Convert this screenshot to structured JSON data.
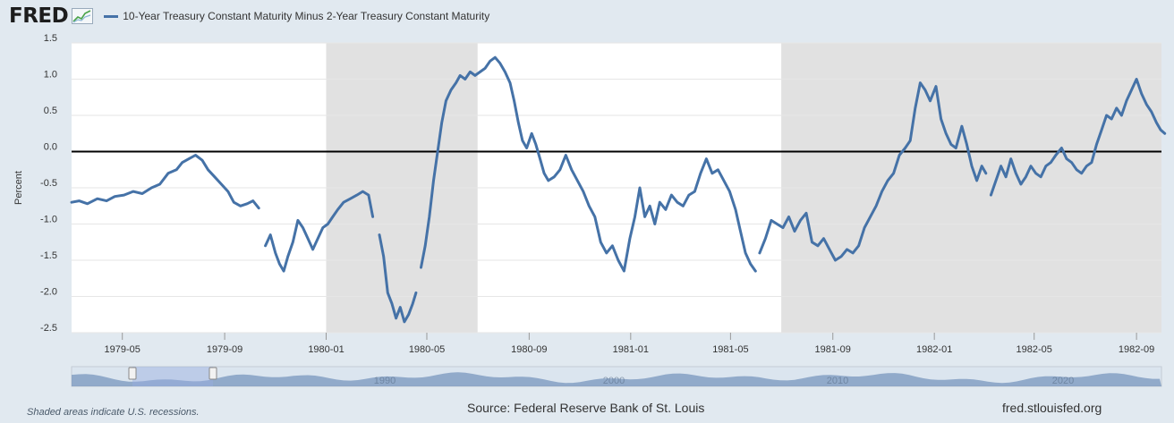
{
  "header": {
    "logo_text": "FRED",
    "logo_icon": "chart-line-icon",
    "legend_label": "10-Year Treasury Constant Maturity Minus 2-Year Treasury Constant Maturity",
    "series_color": "#4572a7"
  },
  "footer": {
    "note": "Shaded areas indicate U.S. recessions.",
    "source": "Source: Federal Reserve Bank of St. Louis",
    "url": "fred.stlouisfed.org"
  },
  "chart_data": {
    "type": "line",
    "title": "",
    "ylabel": "Percent",
    "xlabel": "",
    "ylim": [
      -2.5,
      1.5
    ],
    "yticks": [
      1.5,
      1.0,
      0.5,
      0.0,
      -0.5,
      -1.0,
      -1.5,
      -2.0,
      -2.5
    ],
    "ytick_labels": [
      "1.5",
      "1.0",
      "0.5",
      "0.0",
      "-0.5",
      "-1.0",
      "-1.5",
      "-2.0",
      "-2.5"
    ],
    "x_start": "1979-03",
    "x_end": "1982-10",
    "xticks": [
      {
        "month": "1979-05",
        "label": "1979-05"
      },
      {
        "month": "1979-09",
        "label": "1979-09"
      },
      {
        "month": "1980-01",
        "label": "1980-01"
      },
      {
        "month": "1980-05",
        "label": "1980-05"
      },
      {
        "month": "1980-09",
        "label": "1980-09"
      },
      {
        "month": "1981-01",
        "label": "1981-01"
      },
      {
        "month": "1981-05",
        "label": "1981-05"
      },
      {
        "month": "1981-09",
        "label": "1981-09"
      },
      {
        "month": "1982-01",
        "label": "1982-01"
      },
      {
        "month": "1982-05",
        "label": "1982-05"
      },
      {
        "month": "1982-09",
        "label": "1982-09"
      }
    ],
    "recessions": [
      [
        "1980-01",
        "1980-07"
      ],
      [
        "1981-07",
        "1982-10"
      ]
    ],
    "reference_line": 0,
    "grid": true,
    "legend_position": "top",
    "series": [
      {
        "color": "#4572a7",
        "segments": [
          [
            [
              "1979-03-01",
              -0.7
            ],
            [
              "1979-03-10",
              -0.68
            ],
            [
              "1979-03-20",
              -0.72
            ],
            [
              "1979-04-01",
              -0.65
            ],
            [
              "1979-04-12",
              -0.68
            ],
            [
              "1979-04-22",
              -0.62
            ],
            [
              "1979-05-03",
              -0.6
            ],
            [
              "1979-05-14",
              -0.55
            ],
            [
              "1979-05-25",
              -0.58
            ],
            [
              "1979-06-05",
              -0.5
            ],
            [
              "1979-06-15",
              -0.45
            ],
            [
              "1979-06-25",
              -0.3
            ],
            [
              "1979-07-05",
              -0.25
            ],
            [
              "1979-07-12",
              -0.15
            ],
            [
              "1979-07-20",
              -0.1
            ],
            [
              "1979-07-28",
              -0.05
            ],
            [
              "1979-08-05",
              -0.12
            ],
            [
              "1979-08-12",
              -0.25
            ],
            [
              "1979-08-20",
              -0.35
            ],
            [
              "1979-08-28",
              -0.45
            ],
            [
              "1979-09-05",
              -0.55
            ],
            [
              "1979-09-12",
              -0.7
            ],
            [
              "1979-09-20",
              -0.75
            ],
            [
              "1979-09-28",
              -0.72
            ],
            [
              "1979-10-05",
              -0.68
            ],
            [
              "1979-10-12",
              -0.78
            ]
          ],
          [
            [
              "1979-10-20",
              -1.3
            ],
            [
              "1979-10-26",
              -1.15
            ],
            [
              "1979-11-01",
              -1.4
            ],
            [
              "1979-11-06",
              -1.55
            ],
            [
              "1979-11-11",
              -1.65
            ],
            [
              "1979-11-16",
              -1.45
            ],
            [
              "1979-11-22",
              -1.25
            ],
            [
              "1979-11-28",
              -0.95
            ],
            [
              "1979-12-04",
              -1.05
            ],
            [
              "1979-12-10",
              -1.2
            ],
            [
              "1979-12-16",
              -1.35
            ],
            [
              "1979-12-22",
              -1.2
            ],
            [
              "1979-12-28",
              -1.05
            ],
            [
              "1980-01-03",
              -1.0
            ],
            [
              "1980-01-09",
              -0.9
            ],
            [
              "1980-01-15",
              -0.8
            ],
            [
              "1980-01-22",
              -0.7
            ],
            [
              "1980-01-30",
              -0.65
            ],
            [
              "1980-02-07",
              -0.6
            ],
            [
              "1980-02-14",
              -0.55
            ],
            [
              "1980-02-21",
              -0.6
            ],
            [
              "1980-02-26",
              -0.9
            ]
          ],
          [
            [
              "1980-03-05",
              -1.15
            ],
            [
              "1980-03-10",
              -1.45
            ],
            [
              "1980-03-15",
              -1.95
            ],
            [
              "1980-03-20",
              -2.1
            ],
            [
              "1980-03-25",
              -2.3
            ],
            [
              "1980-03-30",
              -2.15
            ],
            [
              "1980-04-04",
              -2.35
            ],
            [
              "1980-04-09",
              -2.25
            ],
            [
              "1980-04-14",
              -2.1
            ],
            [
              "1980-04-18",
              -1.95
            ]
          ],
          [
            [
              "1980-04-24",
              -1.6
            ],
            [
              "1980-04-29",
              -1.3
            ],
            [
              "1980-05-04",
              -0.9
            ],
            [
              "1980-05-09",
              -0.4
            ],
            [
              "1980-05-14",
              0.0
            ],
            [
              "1980-05-19",
              0.4
            ],
            [
              "1980-05-24",
              0.7
            ],
            [
              "1980-05-30",
              0.85
            ],
            [
              "1980-06-05",
              0.95
            ],
            [
              "1980-06-10",
              1.05
            ],
            [
              "1980-06-16",
              1.0
            ],
            [
              "1980-06-22",
              1.1
            ],
            [
              "1980-06-28",
              1.05
            ],
            [
              "1980-07-04",
              1.1
            ],
            [
              "1980-07-10",
              1.15
            ],
            [
              "1980-07-16",
              1.25
            ],
            [
              "1980-07-22",
              1.3
            ],
            [
              "1980-07-28",
              1.22
            ],
            [
              "1980-08-03",
              1.1
            ],
            [
              "1980-08-09",
              0.95
            ],
            [
              "1980-08-14",
              0.7
            ],
            [
              "1980-08-19",
              0.4
            ],
            [
              "1980-08-24",
              0.15
            ],
            [
              "1980-08-29",
              0.05
            ],
            [
              "1980-09-04",
              0.25
            ],
            [
              "1980-09-09",
              0.1
            ],
            [
              "1980-09-14",
              -0.1
            ],
            [
              "1980-09-19",
              -0.3
            ],
            [
              "1980-09-24",
              -0.4
            ],
            [
              "1980-10-01",
              -0.35
            ],
            [
              "1980-10-08",
              -0.25
            ],
            [
              "1980-10-15",
              -0.05
            ],
            [
              "1980-10-22",
              -0.25
            ],
            [
              "1980-10-29",
              -0.4
            ],
            [
              "1980-11-05",
              -0.55
            ],
            [
              "1980-11-12",
              -0.75
            ],
            [
              "1980-11-19",
              -0.9
            ],
            [
              "1980-11-26",
              -1.25
            ],
            [
              "1980-12-03",
              -1.4
            ],
            [
              "1980-12-10",
              -1.3
            ],
            [
              "1980-12-17",
              -1.5
            ],
            [
              "1980-12-24",
              -1.65
            ],
            [
              "1980-12-31",
              -1.2
            ],
            [
              "1981-01-06",
              -0.9
            ],
            [
              "1981-01-12",
              -0.5
            ],
            [
              "1981-01-18",
              -0.9
            ],
            [
              "1981-01-24",
              -0.75
            ],
            [
              "1981-01-30",
              -1.0
            ],
            [
              "1981-02-05",
              -0.7
            ],
            [
              "1981-02-12",
              -0.8
            ],
            [
              "1981-02-19",
              -0.6
            ],
            [
              "1981-02-26",
              -0.7
            ],
            [
              "1981-03-05",
              -0.75
            ],
            [
              "1981-03-12",
              -0.6
            ],
            [
              "1981-03-19",
              -0.55
            ],
            [
              "1981-03-26",
              -0.3
            ],
            [
              "1981-04-02",
              -0.1
            ],
            [
              "1981-04-09",
              -0.3
            ],
            [
              "1981-04-16",
              -0.25
            ],
            [
              "1981-04-23",
              -0.4
            ],
            [
              "1981-04-30",
              -0.55
            ],
            [
              "1981-05-07",
              -0.8
            ],
            [
              "1981-05-13",
              -1.1
            ],
            [
              "1981-05-19",
              -1.4
            ],
            [
              "1981-05-25",
              -1.55
            ],
            [
              "1981-05-31",
              -1.65
            ]
          ],
          [
            [
              "1981-06-05",
              -1.4
            ],
            [
              "1981-06-12",
              -1.2
            ],
            [
              "1981-06-19",
              -0.95
            ],
            [
              "1981-06-26",
              -1.0
            ],
            [
              "1981-07-03",
              -1.05
            ],
            [
              "1981-07-10",
              -0.9
            ],
            [
              "1981-07-17",
              -1.1
            ],
            [
              "1981-07-24",
              -0.95
            ],
            [
              "1981-07-31",
              -0.85
            ],
            [
              "1981-08-07",
              -1.25
            ],
            [
              "1981-08-14",
              -1.3
            ],
            [
              "1981-08-21",
              -1.2
            ],
            [
              "1981-08-28",
              -1.35
            ],
            [
              "1981-09-04",
              -1.5
            ],
            [
              "1981-09-11",
              -1.45
            ],
            [
              "1981-09-18",
              -1.35
            ],
            [
              "1981-09-25",
              -1.4
            ],
            [
              "1981-10-02",
              -1.3
            ],
            [
              "1981-10-09",
              -1.05
            ],
            [
              "1981-10-16",
              -0.9
            ],
            [
              "1981-10-23",
              -0.75
            ],
            [
              "1981-10-30",
              -0.55
            ],
            [
              "1981-11-06",
              -0.4
            ],
            [
              "1981-11-13",
              -0.3
            ],
            [
              "1981-11-20",
              -0.05
            ],
            [
              "1981-11-27",
              0.05
            ],
            [
              "1981-12-03",
              0.15
            ],
            [
              "1981-12-09",
              0.6
            ],
            [
              "1981-12-15",
              0.95
            ],
            [
              "1981-12-21",
              0.85
            ],
            [
              "1981-12-27",
              0.7
            ],
            [
              "1982-01-03",
              0.9
            ],
            [
              "1982-01-09",
              0.45
            ],
            [
              "1982-01-15",
              0.25
            ],
            [
              "1982-01-21",
              0.1
            ],
            [
              "1982-01-27",
              0.05
            ],
            [
              "1982-02-03",
              0.35
            ],
            [
              "1982-02-09",
              0.1
            ],
            [
              "1982-02-15",
              -0.2
            ],
            [
              "1982-02-21",
              -0.4
            ],
            [
              "1982-02-27",
              -0.2
            ],
            [
              "1982-03-04",
              -0.3
            ]
          ],
          [
            [
              "1982-03-10",
              -0.6
            ],
            [
              "1982-03-16",
              -0.4
            ],
            [
              "1982-03-22",
              -0.2
            ],
            [
              "1982-03-28",
              -0.35
            ],
            [
              "1982-04-03",
              -0.1
            ],
            [
              "1982-04-09",
              -0.3
            ],
            [
              "1982-04-15",
              -0.45
            ],
            [
              "1982-04-21",
              -0.35
            ],
            [
              "1982-04-27",
              -0.2
            ],
            [
              "1982-05-03",
              -0.3
            ],
            [
              "1982-05-09",
              -0.35
            ],
            [
              "1982-05-15",
              -0.2
            ],
            [
              "1982-05-21",
              -0.15
            ],
            [
              "1982-05-27",
              -0.05
            ],
            [
              "1982-06-03",
              0.05
            ],
            [
              "1982-06-09",
              -0.1
            ],
            [
              "1982-06-15",
              -0.15
            ],
            [
              "1982-06-21",
              -0.25
            ],
            [
              "1982-06-27",
              -0.3
            ],
            [
              "1982-07-03",
              -0.2
            ],
            [
              "1982-07-09",
              -0.15
            ],
            [
              "1982-07-15",
              0.1
            ],
            [
              "1982-07-21",
              0.3
            ],
            [
              "1982-07-27",
              0.5
            ],
            [
              "1982-08-02",
              0.45
            ],
            [
              "1982-08-08",
              0.6
            ],
            [
              "1982-08-14",
              0.5
            ],
            [
              "1982-08-20",
              0.7
            ],
            [
              "1982-08-26",
              0.85
            ],
            [
              "1982-09-01",
              1.0
            ],
            [
              "1982-09-07",
              0.8
            ],
            [
              "1982-09-13",
              0.65
            ],
            [
              "1982-09-19",
              0.55
            ],
            [
              "1982-09-25",
              0.4
            ],
            [
              "1982-09-30",
              0.3
            ],
            [
              "1982-10-05",
              0.25
            ]
          ]
        ]
      }
    ]
  },
  "navigator": {
    "labels": [
      "1990",
      "2000",
      "2010",
      "2020"
    ]
  }
}
